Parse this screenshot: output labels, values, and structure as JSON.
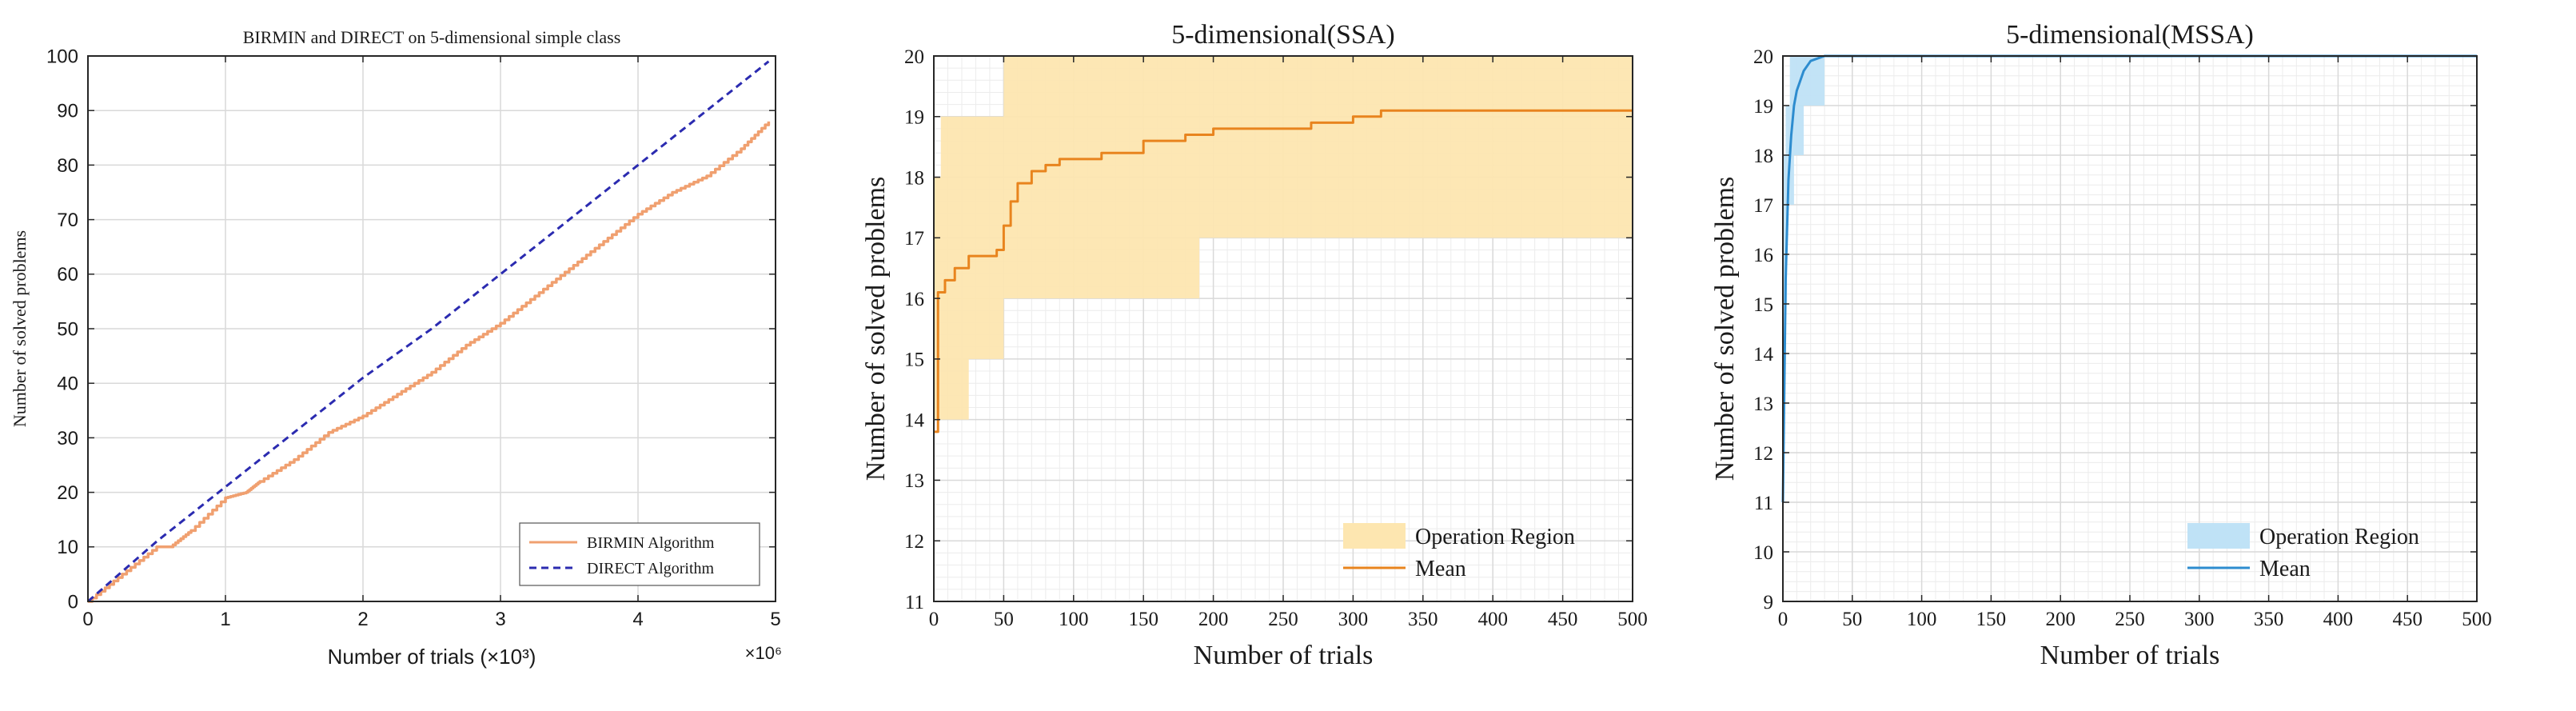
{
  "colors": {
    "birmin": "#f0a070",
    "direct": "#2b2bb0",
    "ssa_fill": "#fde6b0",
    "ssa_mean": "#e8841e",
    "mssa_fill": "#bfe2f6",
    "mssa_mean": "#2d8ccf",
    "grid_major": "#d9d9d9",
    "grid_minor": "#ececec",
    "axis": "#262626"
  },
  "chart_data": [
    {
      "type": "line",
      "title": "BIRMIN and DIRECT on 5-dimensional simple class",
      "xlabel": "Number of trials (×10³)",
      "ylabel": "Number of solved problems",
      "x_exponent_label": "×10⁶",
      "xlim": [
        0,
        5
      ],
      "ylim": [
        0,
        100
      ],
      "xticks": [
        0,
        1,
        2,
        3,
        4,
        5
      ],
      "yticks": [
        0,
        10,
        20,
        30,
        40,
        50,
        60,
        70,
        80,
        90,
        100
      ],
      "grid": true,
      "legend_position": "bottom-right",
      "series": [
        {
          "name": "BIRMIN Algorithm",
          "style": "solid-step",
          "x": [
            0,
            0.25,
            0.5,
            0.6,
            0.75,
            1.0,
            1.15,
            1.25,
            1.5,
            1.75,
            2.0,
            2.25,
            2.5,
            2.75,
            3.0,
            3.25,
            3.5,
            3.75,
            4.0,
            4.25,
            4.5,
            4.75,
            4.95
          ],
          "values": [
            0,
            5,
            10,
            10,
            13,
            19,
            20,
            22,
            26,
            31,
            34,
            38,
            42,
            47,
            51,
            56,
            61,
            66,
            71,
            75,
            78,
            83,
            88
          ]
        },
        {
          "name": "DIRECT Algorithm",
          "style": "dashed",
          "x": [
            0,
            0.5,
            1.0,
            1.5,
            2.0,
            2.5,
            3.0,
            3.5,
            4.0,
            4.5,
            4.95
          ],
          "values": [
            0,
            11,
            21,
            31,
            41,
            50,
            60,
            70,
            80,
            90,
            99
          ]
        }
      ]
    },
    {
      "type": "area",
      "title": "5-dimensional(SSA)",
      "xlabel": "Number of trials",
      "ylabel": "Number of solved problems",
      "xlim": [
        0,
        500
      ],
      "ylim": [
        11,
        20
      ],
      "xticks": [
        0,
        50,
        100,
        150,
        200,
        250,
        300,
        350,
        400,
        450,
        500
      ],
      "yticks": [
        11,
        12,
        13,
        14,
        15,
        16,
        17,
        18,
        19,
        20
      ],
      "grid": true,
      "legend_position": "bottom-right",
      "region": {
        "name": "Operation Region",
        "upper": {
          "x": [
            0,
            5,
            25,
            50,
            500
          ],
          "y": [
            18,
            19,
            19,
            20,
            20
          ]
        },
        "lower": {
          "x": [
            0,
            25,
            50,
            190,
            500
          ],
          "y": [
            14,
            15,
            16,
            17,
            17
          ]
        }
      },
      "series": [
        {
          "name": "Mean",
          "x": [
            0,
            3,
            8,
            15,
            25,
            35,
            45,
            50,
            55,
            60,
            70,
            80,
            90,
            100,
            120,
            150,
            180,
            200,
            250,
            270,
            300,
            320,
            400,
            500
          ],
          "values": [
            13.8,
            16.1,
            16.3,
            16.5,
            16.7,
            16.7,
            16.8,
            17.2,
            17.6,
            17.9,
            18.1,
            18.2,
            18.3,
            18.3,
            18.4,
            18.6,
            18.7,
            18.8,
            18.8,
            18.9,
            19.0,
            19.1,
            19.1,
            19.1
          ]
        }
      ]
    },
    {
      "type": "area",
      "title": "5-dimensional(MSSA)",
      "xlabel": "Number of trials",
      "ylabel": "Number of solved problems",
      "xlim": [
        0,
        500
      ],
      "ylim": [
        9,
        20
      ],
      "xticks": [
        0,
        50,
        100,
        150,
        200,
        250,
        300,
        350,
        400,
        450,
        500
      ],
      "yticks": [
        9,
        10,
        11,
        12,
        13,
        14,
        15,
        16,
        17,
        18,
        19,
        20
      ],
      "grid": true,
      "legend_position": "bottom-right",
      "region": {
        "name": "Operation Region",
        "upper": {
          "x": [
            0,
            2,
            5,
            10,
            500
          ],
          "y": [
            18,
            19,
            20,
            20,
            20
          ]
        },
        "lower": {
          "x": [
            0,
            3,
            8,
            15,
            30,
            500
          ],
          "y": [
            15,
            17,
            18,
            19,
            20,
            20
          ]
        }
      },
      "series": [
        {
          "name": "Mean",
          "x": [
            0,
            2,
            4,
            6,
            8,
            10,
            15,
            20,
            25,
            30,
            500
          ],
          "values": [
            11,
            15.5,
            17.5,
            18.4,
            19.0,
            19.3,
            19.7,
            19.9,
            19.95,
            20,
            20
          ]
        }
      ]
    }
  ]
}
